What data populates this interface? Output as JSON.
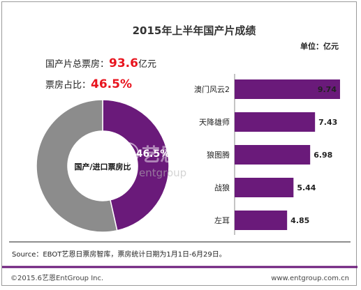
{
  "title": "2015年上半年国产片成绩",
  "unit_label": "单位：亿元",
  "summary": {
    "total_label": "国产片总票房：",
    "total_value": "93.6",
    "total_unit": "亿元",
    "share_label": "票房占比：",
    "share_value": "46.5%"
  },
  "colors": {
    "accent": "#6a1a7a",
    "gray": "#8c8c8c",
    "red": "#e8141e"
  },
  "chart_data": [
    {
      "type": "pie",
      "donut": true,
      "categories": [
        "国产",
        "进口"
      ],
      "values": [
        46.5,
        53.5
      ],
      "center_label": "国产/进口票房比",
      "slice_labels": [
        "46.5%"
      ]
    },
    {
      "type": "bar",
      "orientation": "horizontal",
      "categories": [
        "澳门风云2",
        "天降雄师",
        "狼图腾",
        "战狼",
        "左耳"
      ],
      "values": [
        9.74,
        7.43,
        6.98,
        5.44,
        4.85
      ],
      "value_labels": [
        "9.74",
        "7.43",
        "6.98",
        "5.44",
        "4.85"
      ],
      "xlim": [
        0,
        10
      ]
    }
  ],
  "source": "Source：EBOT艺恩日票房智库，票房统计日期为1月1日-6月29日。",
  "footer": {
    "copyright": "©2015.6艺恩EntGroup Inc.",
    "website": "www.entgroup.com.cn"
  },
  "watermark": {
    "brand_cn": "艺恩",
    "brand_en": "entgroup"
  }
}
